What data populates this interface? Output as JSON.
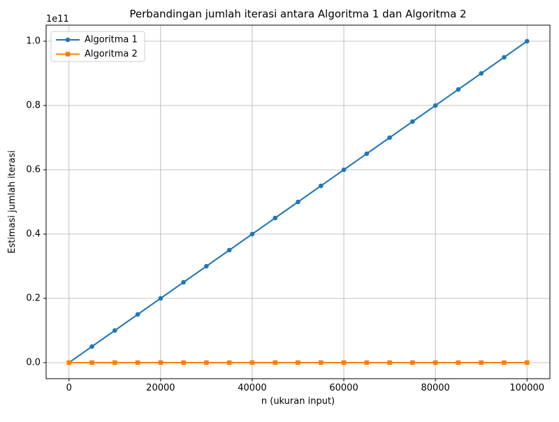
{
  "figure": {
    "background": "#ffffff",
    "plot_border_color": "#000000",
    "text_color": "#000000"
  },
  "chart_data": {
    "type": "line",
    "title": "Perbandingan jumlah iterasi antara Algoritma 1 dan Algoritma 2",
    "xlabel": "n (ukuran input)",
    "ylabel": "Estimasi jumlah iterasi",
    "y_offset_label": "1e11",
    "xlim": [
      -5000,
      105000
    ],
    "ylim": [
      -5000000000,
      105000000000
    ],
    "x_ticks": [
      0,
      20000,
      40000,
      60000,
      80000,
      100000
    ],
    "x_tick_labels": [
      "0",
      "20000",
      "40000",
      "60000",
      "80000",
      "100000"
    ],
    "y_ticks": [
      0,
      20000000000,
      40000000000,
      60000000000,
      80000000000,
      100000000000
    ],
    "y_tick_labels": [
      "0.0",
      "0.2",
      "0.4",
      "0.6",
      "0.8",
      "1.0"
    ],
    "grid": true,
    "grid_color": "#b0b0b0",
    "legend": {
      "position": "upper-left"
    },
    "x": [
      0,
      5000,
      10000,
      15000,
      20000,
      25000,
      30000,
      35000,
      40000,
      45000,
      50000,
      55000,
      60000,
      65000,
      70000,
      75000,
      80000,
      85000,
      90000,
      95000,
      100000
    ],
    "series": [
      {
        "name": "Algoritma 1",
        "color": "#1f77b4",
        "marker": "circle",
        "values": [
          0,
          5000000000,
          10000000000,
          15000000000,
          20000000000,
          25000000000,
          30000000000,
          35000000000,
          40000000000,
          45000000000,
          50000000000,
          55000000000,
          60000000000,
          65000000000,
          70000000000,
          75000000000,
          80000000000,
          85000000000,
          90000000000,
          95000000000,
          100000000000
        ]
      },
      {
        "name": "Algoritma 2",
        "color": "#ff7f0e",
        "marker": "square",
        "values": [
          0,
          0,
          0,
          0,
          0,
          0,
          0,
          0,
          0,
          0,
          0,
          0,
          0,
          0,
          0,
          0,
          0,
          0,
          0,
          0,
          0
        ]
      }
    ]
  }
}
